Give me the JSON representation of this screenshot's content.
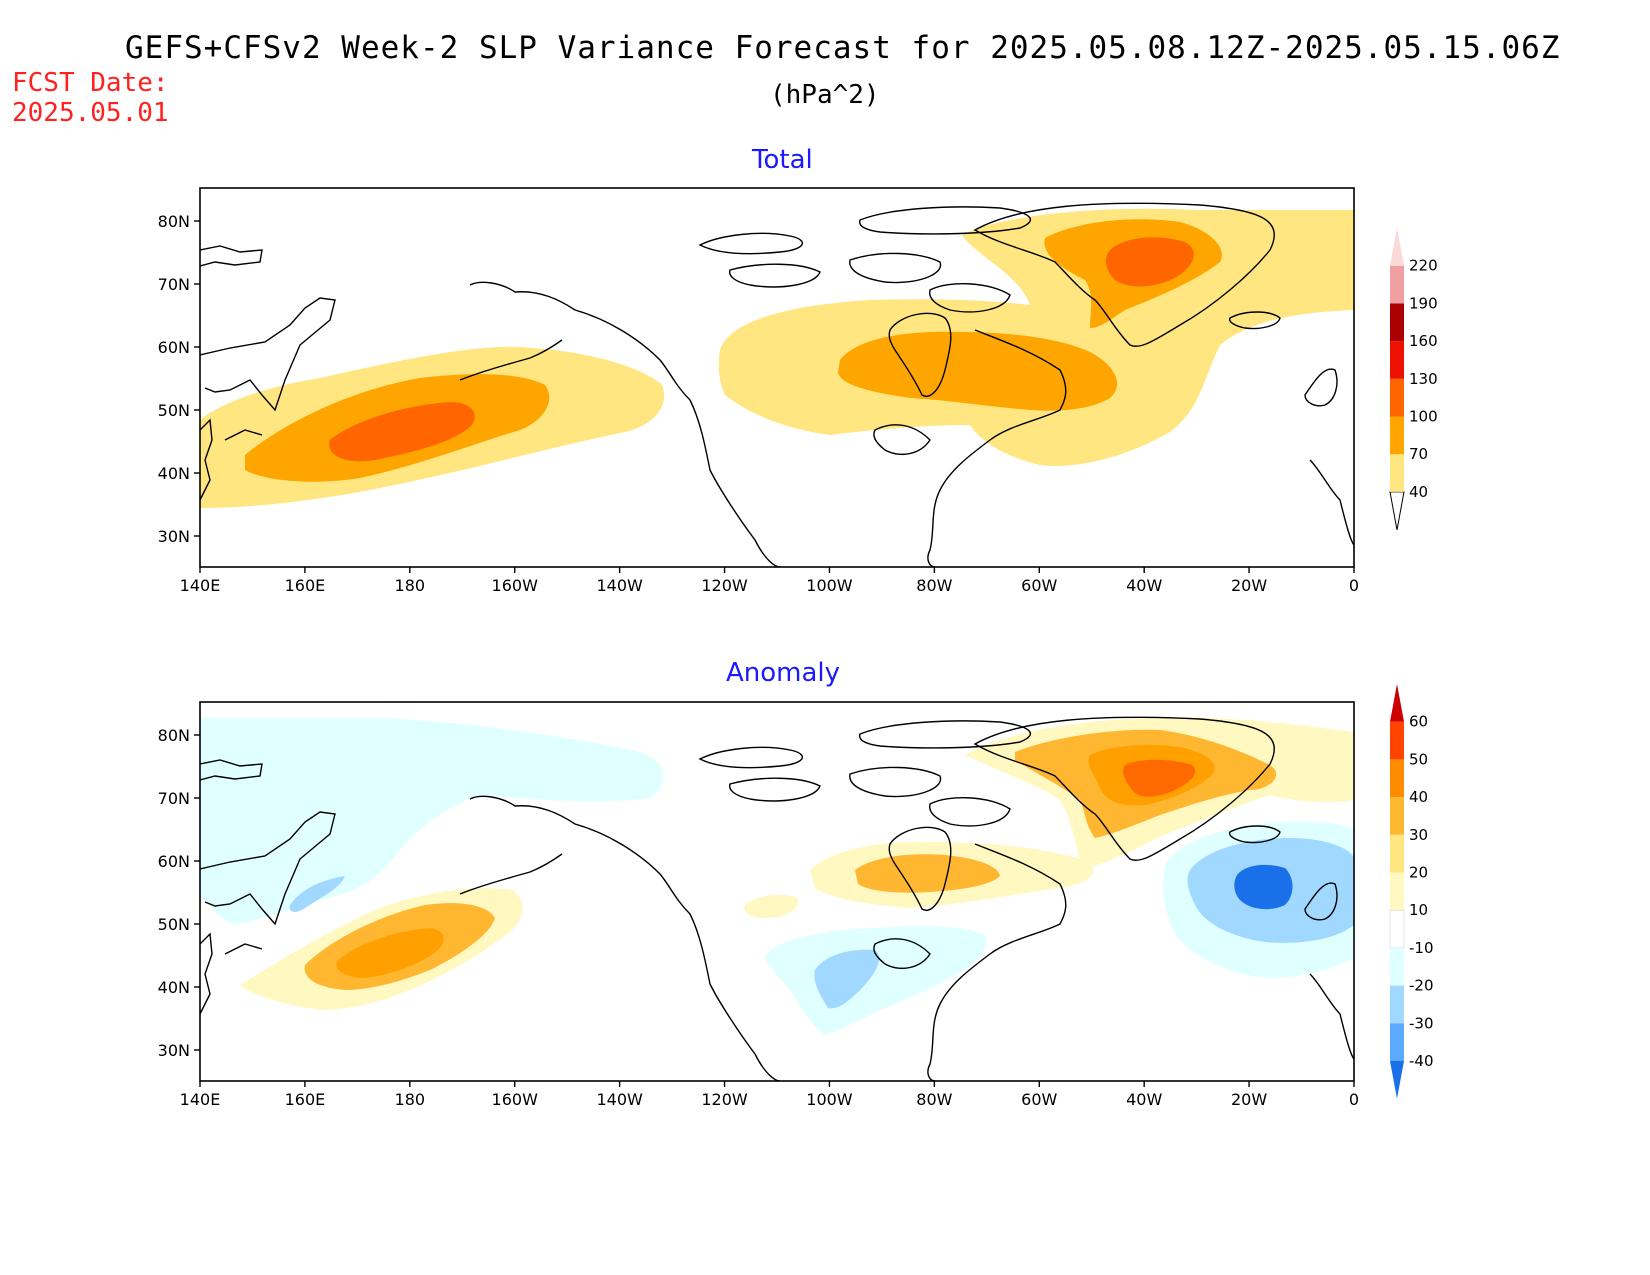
{
  "header": {
    "title": "GEFS+CFSv2 Week-2 SLP Variance Forecast for 2025.05.08.12Z-2025.05.15.06Z",
    "units": "(hPa^2)",
    "fcst_label": "FCST Date:",
    "fcst_date": "2025.05.01"
  },
  "axes": {
    "lon_ticks": [
      "140E",
      "160E",
      "180",
      "160W",
      "140W",
      "120W",
      "100W",
      "80W",
      "60W",
      "40W",
      "20W",
      "0"
    ],
    "lat_ticks": [
      "80N",
      "70N",
      "60N",
      "50N",
      "40N",
      "30N"
    ]
  },
  "panels": [
    {
      "title": "Total",
      "colorbar": {
        "levels": [
          "40",
          "70",
          "100",
          "130",
          "160",
          "190",
          "220"
        ],
        "colors": [
          "#ffe680",
          "#ffa500",
          "#ff6600",
          "#ee1100",
          "#aa0000",
          "#f0a0a0",
          "#fcd8d8"
        ]
      }
    },
    {
      "title": "Anomaly",
      "colorbar": {
        "levels": [
          "60",
          "50",
          "40",
          "30",
          "20",
          "10",
          "-10",
          "-20",
          "-30",
          "-40"
        ],
        "colors": [
          "#cc0000",
          "#ff4400",
          "#ff8c00",
          "#ffb732",
          "#ffe680",
          "#fff8c0",
          "#ffffff",
          "#e0ffff",
          "#a0d8ff",
          "#5aaaff",
          "#1a70e8"
        ]
      }
    }
  ]
}
